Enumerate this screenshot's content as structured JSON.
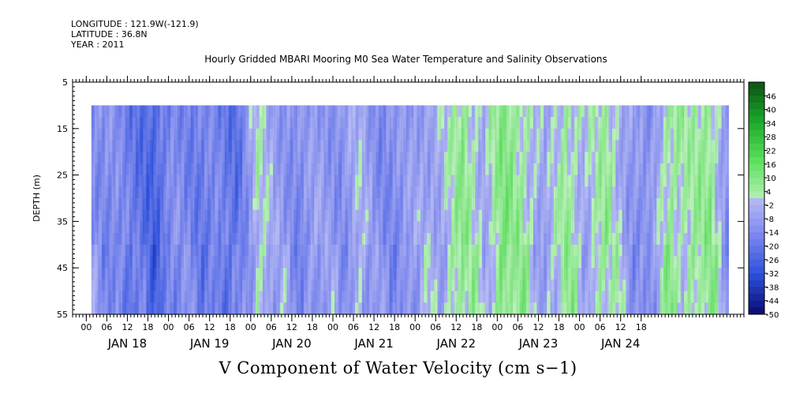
{
  "metadata": {
    "longitude": "LONGITUDE : 121.9W(-121.9)",
    "latitude": "LATITUDE : 36.8N",
    "year": "YEAR : 2011"
  },
  "colorbar": {
    "labels": [
      "46",
      "40",
      "34",
      "28",
      "22",
      "16",
      "10",
      "4",
      "-2",
      "-8",
      "-14",
      "-20",
      "-26",
      "-32",
      "-38",
      "-44",
      "-50"
    ]
  },
  "colors": {
    "green_dark": "#0d5a16",
    "green_light": "#b8f0b8",
    "blue_light": "#b4b8f4",
    "blue_dark": "#0a0a70"
  },
  "chart_data": {
    "type": "heatmap",
    "title": "Hourly Gridded MBARI Mooring M0 Sea Water Temperature and Salinity Observations",
    "xlabel": "",
    "ylabel": "DEPTH (m)",
    "main_label": "V Component of Water Velocity (cm s−1)",
    "ylim": [
      5,
      55
    ],
    "y_ticks": [
      5,
      15,
      25,
      35,
      45,
      55
    ],
    "data_depth_range": [
      10,
      55
    ],
    "x_hour_ticks": [
      "00",
      "06",
      "12",
      "18",
      "00",
      "06",
      "12",
      "18",
      "00",
      "06",
      "12",
      "18",
      "00",
      "06",
      "12",
      "18",
      "00",
      "06",
      "12",
      "18",
      "00",
      "06",
      "12",
      "18",
      "00",
      "06",
      "12",
      "18"
    ],
    "x_days": [
      "JAN 18",
      "JAN 19",
      "JAN 20",
      "JAN 21",
      "JAN 22",
      "JAN 23",
      "JAN 24"
    ],
    "time_range_hours_from_jan17_00": [
      1.5,
      187.5
    ],
    "colorbar_range": [
      -50,
      52
    ],
    "colorbar_step": 3,
    "velocity_profile": [
      {
        "hour": 2,
        "v": -12
      },
      {
        "hour": 8,
        "v": -14
      },
      {
        "hour": 14,
        "v": -20
      },
      {
        "hour": 20,
        "v": -26
      },
      {
        "hour": 26,
        "v": -13
      },
      {
        "hour": 32,
        "v": -18
      },
      {
        "hour": 38,
        "v": -17
      },
      {
        "hour": 44,
        "v": -22
      },
      {
        "hour": 50,
        "v": 0
      },
      {
        "hour": 56,
        "v": -8
      },
      {
        "hour": 62,
        "v": -14
      },
      {
        "hour": 68,
        "v": -8
      },
      {
        "hour": 74,
        "v": -12
      },
      {
        "hour": 80,
        "v": -4
      },
      {
        "hour": 86,
        "v": -14
      },
      {
        "hour": 92,
        "v": -12
      },
      {
        "hour": 98,
        "v": -6
      },
      {
        "hour": 104,
        "v": -4
      },
      {
        "hour": 110,
        "v": 8
      },
      {
        "hour": 116,
        "v": -4
      },
      {
        "hour": 122,
        "v": 10
      },
      {
        "hour": 128,
        "v": 4
      },
      {
        "hour": 134,
        "v": -8
      },
      {
        "hour": 140,
        "v": 6
      },
      {
        "hour": 146,
        "v": -4
      },
      {
        "hour": 152,
        "v": 6
      },
      {
        "hour": 158,
        "v": -8
      },
      {
        "hour": 164,
        "v": -14
      },
      {
        "hour": 170,
        "v": 6
      },
      {
        "hour": 176,
        "v": 2
      },
      {
        "hour": 182,
        "v": 8
      },
      {
        "hour": 187,
        "v": -10
      }
    ]
  }
}
